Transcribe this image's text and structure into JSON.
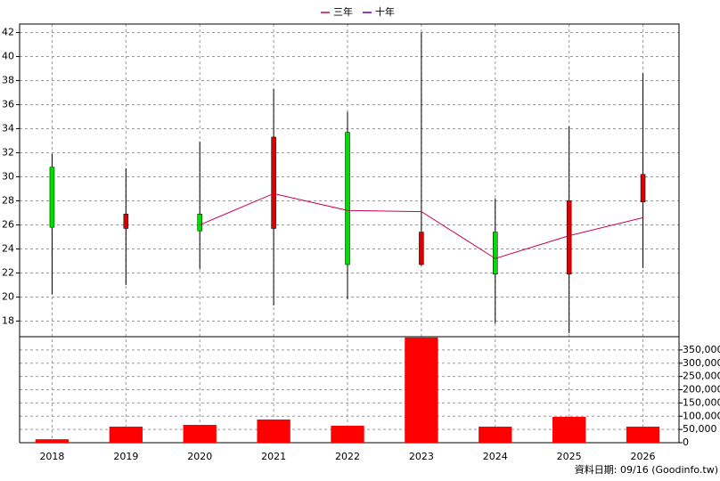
{
  "chart_data": {
    "type": "candlestick",
    "categories": [
      "2018",
      "2019",
      "2020",
      "2021",
      "2022",
      "2023",
      "2024",
      "2025",
      "2026"
    ],
    "open": [
      30.8,
      25.7,
      26.9,
      25.7,
      33.7,
      22.7,
      25.4,
      21.9,
      27.9
    ],
    "high": [
      31.9,
      30.7,
      32.9,
      37.3,
      35.4,
      42.0,
      28.2,
      34.2,
      38.6
    ],
    "low": [
      20.2,
      21.0,
      22.3,
      19.3,
      19.8,
      22.6,
      17.8,
      17.0,
      22.4
    ],
    "close": [
      25.8,
      26.9,
      25.5,
      33.3,
      22.7,
      25.4,
      21.9,
      28.0,
      30.2
    ],
    "up_color": "#dd0000",
    "down_color": "#00dd00",
    "series": [
      {
        "name": "三年",
        "color": "#cc0055",
        "values": [
          null,
          null,
          26.0,
          28.6,
          27.2,
          27.1,
          23.2,
          25.1,
          26.6
        ]
      },
      {
        "name": "十年",
        "color": "#6600aa",
        "values": [
          null,
          null,
          null,
          null,
          null,
          null,
          null,
          null,
          null
        ]
      }
    ],
    "ylim": [
      16.7,
      42.7
    ],
    "yticks": [
      18,
      20,
      22,
      24,
      26,
      28,
      30,
      32,
      34,
      36,
      38,
      40,
      42
    ],
    "grid": true,
    "legend": "top",
    "volume": {
      "type": "bar",
      "color": "#ff0000",
      "values": [
        13000,
        60600,
        67300,
        87500,
        64000,
        397000,
        60600,
        97600,
        60600
      ],
      "ylim": [
        0,
        400000
      ],
      "yticks": [
        {
          "value": 0,
          "label": "0"
        },
        {
          "value": 50000,
          "label": "50,000"
        },
        {
          "value": 100000,
          "label": "100,000"
        },
        {
          "value": 150000,
          "label": "150,000"
        },
        {
          "value": 200000,
          "label": "200,000"
        },
        {
          "value": 250000,
          "label": "250,000"
        },
        {
          "value": 300000,
          "label": "300,000"
        },
        {
          "value": 350000,
          "label": "350,000"
        }
      ]
    },
    "source": "資料日期: 09/16 (Goodinfo.tw)"
  }
}
